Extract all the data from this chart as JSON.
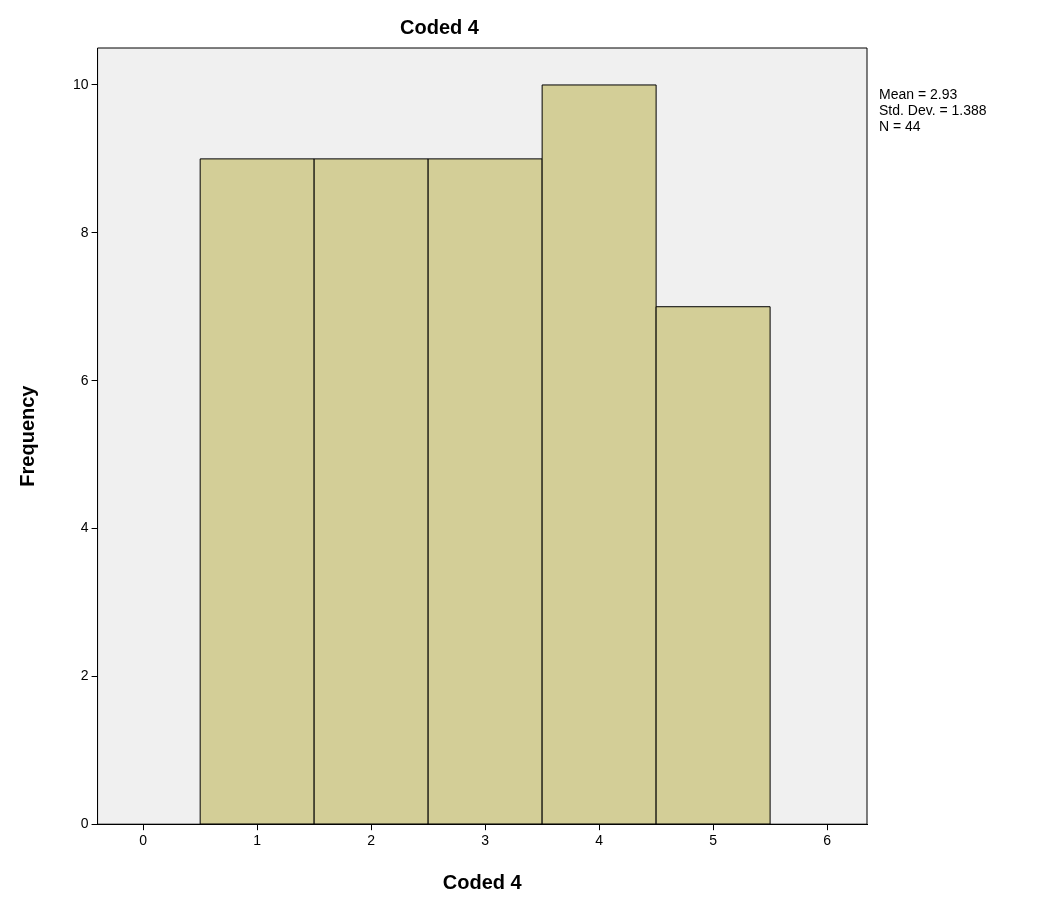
{
  "chart_data": {
    "type": "histogram",
    "title": "Coded 4",
    "xlabel": "Coded 4",
    "ylabel": "Frequency",
    "bins": [
      0.5,
      1.5,
      2.5,
      3.5,
      4.5,
      5.5
    ],
    "values": [
      9,
      9,
      9,
      10,
      7
    ],
    "color": "#d3ce97",
    "xlim": [
      -0.4,
      6.35
    ],
    "xticks": [
      0,
      1,
      2,
      3,
      4,
      5,
      6
    ],
    "ylim": [
      0,
      10.5
    ],
    "yticks": [
      0,
      2,
      4,
      6,
      8,
      10
    ],
    "grid": false,
    "legend": false,
    "annotations": [
      "Mean = 2.93",
      "Std. Dev. = 1.388",
      "N = 44"
    ]
  }
}
